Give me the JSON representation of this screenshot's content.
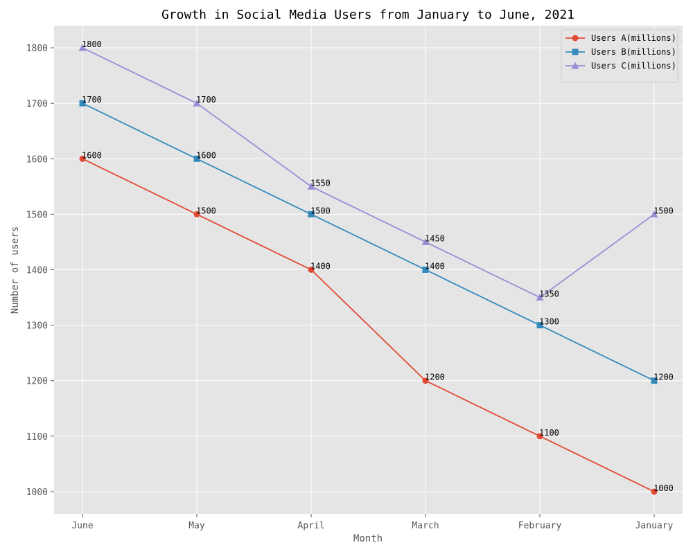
{
  "chart_data": {
    "type": "line",
    "title": "Growth in Social Media Users from January to June, 2021",
    "xlabel": "Month",
    "ylabel": "Number of users",
    "categories": [
      "June",
      "May",
      "April",
      "March",
      "February",
      "January"
    ],
    "ylim": [
      960,
      1840
    ],
    "yticks": [
      1000,
      1100,
      1200,
      1300,
      1400,
      1500,
      1600,
      1700,
      1800
    ],
    "grid": true,
    "legend_position": "top-right",
    "background": "#e5e5e5",
    "series": [
      {
        "name": "Users A(millions)",
        "color": "#e24a33",
        "marker": "circle",
        "values": [
          1600,
          1500,
          1400,
          1200,
          1100,
          1000
        ]
      },
      {
        "name": "Users B(millions)",
        "color": "#348abd",
        "marker": "square",
        "values": [
          1700,
          1600,
          1500,
          1400,
          1300,
          1200
        ]
      },
      {
        "name": "Users C(millions)",
        "color": "#988ed5",
        "marker": "triangle",
        "values": [
          1800,
          1700,
          1550,
          1450,
          1350,
          1500
        ]
      }
    ]
  }
}
